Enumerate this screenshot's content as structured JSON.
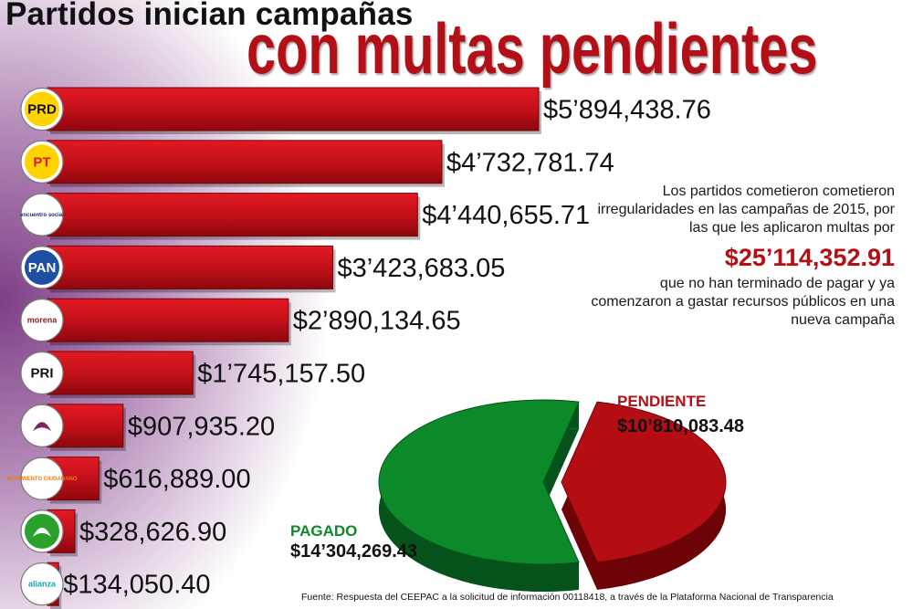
{
  "title": {
    "line1": "Partidos inician campañas",
    "line2": "con multas pendientes"
  },
  "chart_data": [
    {
      "type": "bar",
      "orientation": "horizontal",
      "categories": [
        "PRD",
        "PT",
        "encuentro social",
        "PAN",
        "morena",
        "PRI",
        "",
        "MOVIMIENTO CIUDADANO",
        "",
        "Nueva Alianza"
      ],
      "values": [
        5894438.76,
        4732781.74,
        4440655.71,
        3423683.05,
        2890134.65,
        1745157.5,
        907935.2,
        616889.0,
        328626.9,
        134050.4
      ],
      "value_labels": [
        "$5’894,438.76",
        "$4’732,781.74",
        "$4’440,655.71",
        "$3’423,683.05",
        "$2’890,134.65",
        "$1’745,157.50",
        "$907,935.20",
        "$616,889.00",
        "$328,626.90",
        "$134,050.40"
      ],
      "color": "#c4101a",
      "xlim": [
        0,
        6050000
      ]
    },
    {
      "type": "pie",
      "slices": [
        {
          "label": "PENDIENTE",
          "value": 10810083.48,
          "value_label": "$10’810,083.48",
          "color": "#b50d14"
        },
        {
          "label": "PAGADO",
          "value": 14304269.43,
          "value_label": "$14’304,269.43",
          "color": "#0c8a2a"
        }
      ]
    }
  ],
  "logos": [
    {
      "name": "prd-logo",
      "text": "PRD",
      "fg": "#111111",
      "bg": "#ffd400"
    },
    {
      "name": "pt-logo",
      "text": "PT",
      "fg": "#e8141c",
      "bg": "#ffd400"
    },
    {
      "name": "encuentro-social-logo",
      "text": "encuentro social",
      "fg": "#1b2a78",
      "bg": "#ffffff"
    },
    {
      "name": "pan-logo",
      "text": "PAN",
      "fg": "#ffffff",
      "bg": "#1e4fa3"
    },
    {
      "name": "morena-logo",
      "text": "morena",
      "fg": "#8a1e1e",
      "bg": "#ffffff"
    },
    {
      "name": "pri-logo",
      "text": "PRI",
      "fg": "#111111",
      "bg": "#ffffff"
    },
    {
      "name": "humanista-logo",
      "text": "",
      "fg": "#7a2a5a",
      "bg": "#ffffff"
    },
    {
      "name": "movimiento-ciudadano-logo",
      "text": "MOVIMIENTO CIUDADANO",
      "fg": "#f07a10",
      "bg": "#ffffff"
    },
    {
      "name": "pvem-logo",
      "text": "",
      "fg": "#ffffff",
      "bg": "#2aa12a"
    },
    {
      "name": "nueva-alianza-logo",
      "text": "alianza",
      "fg": "#1aa3b0",
      "bg": "#ffffff"
    }
  ],
  "summary": {
    "lead": "Los partidos cometieron cometieron irregularidades en las campañas de 2015, por las que les aplicaron multas por",
    "total": "$25’114,352.91",
    "tail": "que no han terminado de pagar y ya comenzaron a gastar recursos públicos en una nueva campaña"
  },
  "source": "Fuente: Respuesta del CEEPAC a la solicitud de información 00118418, a través de la Plataforma Nacional de Transparencia"
}
